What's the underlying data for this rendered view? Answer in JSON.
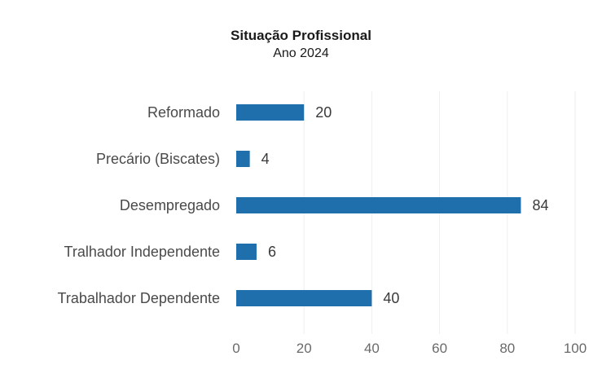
{
  "chart_data": {
    "type": "bar",
    "orientation": "horizontal",
    "title": "Situação Profissional",
    "subtitle": "Ano 2024",
    "xlabel": "",
    "ylabel": "",
    "categories": [
      "Reformado",
      "Precário (Biscates)",
      "Desempregado",
      "Tralhador Independente",
      "Trabalhador Dependente"
    ],
    "values": [
      20,
      4,
      84,
      6,
      40
    ],
    "xlim": [
      0,
      100
    ],
    "xticks": [
      0,
      20,
      40,
      60,
      80,
      100
    ],
    "grid": true,
    "legend": "none",
    "bar_color": "#1f6fad"
  }
}
